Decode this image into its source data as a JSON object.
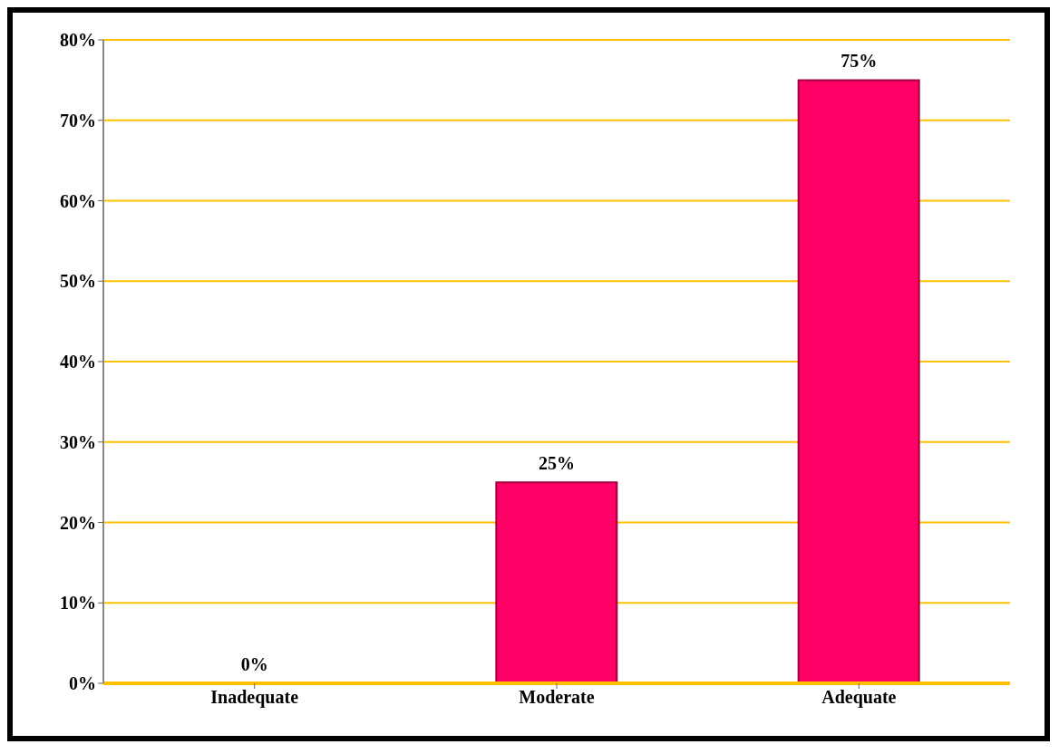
{
  "chart_data": {
    "type": "bar",
    "categories": [
      "Inadequate",
      "Moderate",
      "Adequate"
    ],
    "values": [
      0,
      25,
      75
    ],
    "color": "#ff0066",
    "value_labels": [
      "0%",
      "25%",
      "75%"
    ],
    "ylim": [
      0,
      80
    ],
    "yticks": [
      {
        "value": 0,
        "label": "0%"
      },
      {
        "value": 10,
        "label": "10%"
      },
      {
        "value": 20,
        "label": "20%"
      },
      {
        "value": 30,
        "label": "30%"
      },
      {
        "value": 40,
        "label": "40%"
      },
      {
        "value": 50,
        "label": "50%"
      },
      {
        "value": 60,
        "label": "60%"
      },
      {
        "value": 70,
        "label": "70%"
      },
      {
        "value": 80,
        "label": "80%"
      }
    ],
    "grid": "y"
  }
}
